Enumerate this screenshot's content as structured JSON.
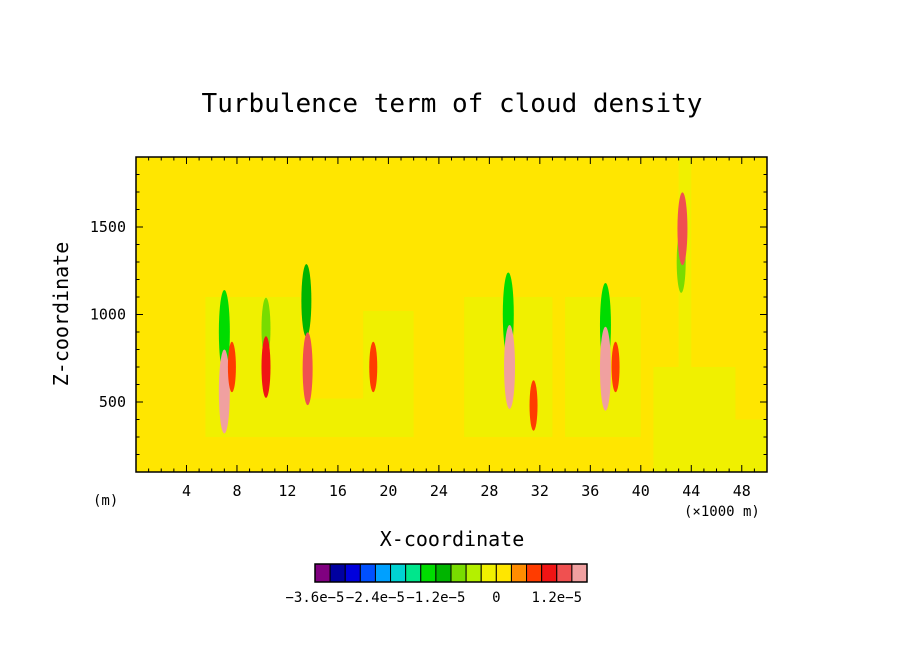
{
  "chart_data": {
    "type": "heatmap",
    "title": "Turbulence term of cloud density",
    "xlabel": "X-coordinate",
    "ylabel": "Z-coordinate",
    "x_unit_left": "(m)",
    "x_unit_right": "(×1000 m)",
    "xlim": [
      0,
      50
    ],
    "ylim": [
      100,
      1900
    ],
    "x_ticks": [
      4,
      8,
      12,
      16,
      20,
      24,
      28,
      32,
      36,
      40,
      44,
      48
    ],
    "y_ticks": [
      500,
      1000,
      1500
    ],
    "background_level": 0,
    "regions": [
      {
        "x": [
          0.0,
          50.0
        ],
        "z": [
          100,
          1900
        ],
        "value": 0
      },
      {
        "x": [
          5.5,
          13.0
        ],
        "z": [
          300,
          1100
        ],
        "value": -3e-06
      },
      {
        "x": [
          13.0,
          22.0
        ],
        "z": [
          300,
          520
        ],
        "value": -3e-06
      },
      {
        "x": [
          18.0,
          22.0
        ],
        "z": [
          520,
          1020
        ],
        "value": -3e-06
      },
      {
        "x": [
          26.0,
          33.0
        ],
        "z": [
          300,
          1100
        ],
        "value": -3e-06
      },
      {
        "x": [
          34.0,
          40.0
        ],
        "z": [
          300,
          1100
        ],
        "value": -3e-06
      },
      {
        "x": [
          41.0,
          47.5
        ],
        "z": [
          100,
          700
        ],
        "value": -3e-06
      },
      {
        "x": [
          47.5,
          50.0
        ],
        "z": [
          100,
          400
        ],
        "value": -3e-06
      },
      {
        "x": [
          43.0,
          44.0
        ],
        "z": [
          700,
          1900
        ],
        "value": -3e-06
      }
    ],
    "features": [
      {
        "x": 7.0,
        "z": 900,
        "value": -1.5e-05
      },
      {
        "x": 10.3,
        "z": 920,
        "value": -9e-06
      },
      {
        "x": 13.5,
        "z": 1080,
        "value": -1.2e-05
      },
      {
        "x": 29.5,
        "z": 1000,
        "value": -1.5e-05
      },
      {
        "x": 37.2,
        "z": 940,
        "value": -1.5e-05
      },
      {
        "x": 43.2,
        "z": 1300,
        "value": -9e-06
      },
      {
        "x": 7.0,
        "z": 560,
        "value": 1.5e-05
      },
      {
        "x": 7.6,
        "z": 700,
        "value": 6e-06
      },
      {
        "x": 10.3,
        "z": 700,
        "value": 9e-06
      },
      {
        "x": 13.6,
        "z": 690,
        "value": 1.2e-05
      },
      {
        "x": 18.8,
        "z": 700,
        "value": 6e-06
      },
      {
        "x": 29.6,
        "z": 700,
        "value": 1.5e-05
      },
      {
        "x": 37.2,
        "z": 690,
        "value": 1.5e-05
      },
      {
        "x": 38.0,
        "z": 700,
        "value": 6e-06
      },
      {
        "x": 31.5,
        "z": 480,
        "value": 6e-06
      },
      {
        "x": 43.3,
        "z": 1490,
        "value": 1.2e-05
      }
    ]
  },
  "colorbar": {
    "levels": [
      -3.6e-05,
      -3.3e-05,
      -3e-05,
      -2.7e-05,
      -2.4e-05,
      -2.1e-05,
      -1.8e-05,
      -1.5e-05,
      -1.2e-05,
      -9e-06,
      -6e-06,
      -3e-06,
      0,
      3e-06,
      6e-06,
      9e-06,
      1.2e-05,
      1.5e-05
    ],
    "colors": [
      "#800080",
      "#0000a0",
      "#0000dc",
      "#0050ff",
      "#00a0ff",
      "#00d2d2",
      "#00e68c",
      "#00dc00",
      "#00b400",
      "#78dc00",
      "#b4f000",
      "#f0f000",
      "#ffe600",
      "#ff8c00",
      "#ff3c00",
      "#f01414",
      "#f05050",
      "#f0a0a0"
    ],
    "labels": [
      {
        "text": "−3.6e−5",
        "level": -3.6e-05
      },
      {
        "text": "−2.4e−5",
        "level": -2.4e-05
      },
      {
        "text": "−1.2e−5",
        "level": -1.2e-05
      },
      {
        "text": "0",
        "level": 0
      },
      {
        "text": "1.2e−5",
        "level": 1.2e-05
      }
    ]
  }
}
